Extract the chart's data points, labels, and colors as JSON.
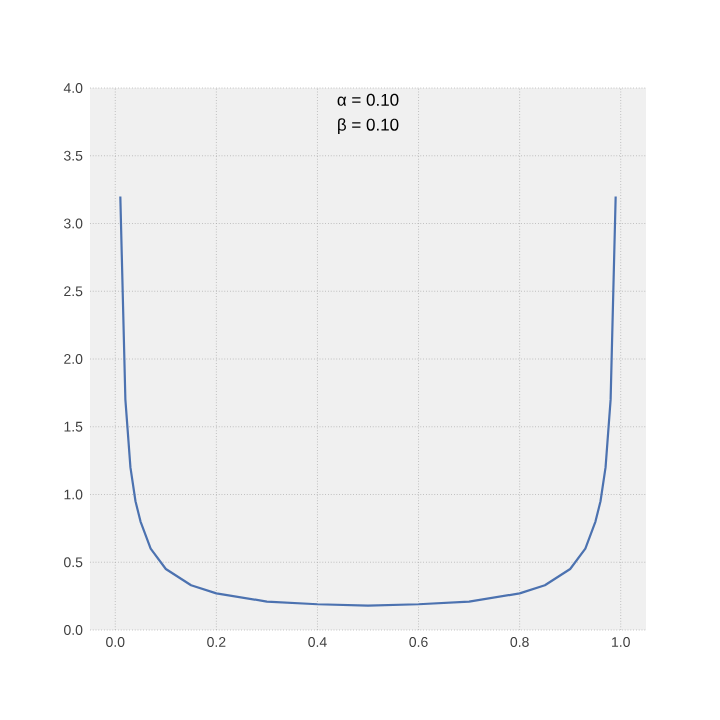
{
  "chart_data": {
    "type": "line",
    "annotations": [
      "α = 0.10",
      "β = 0.10"
    ],
    "x": [
      0.01,
      0.02,
      0.03,
      0.04,
      0.05,
      0.07,
      0.1,
      0.15,
      0.2,
      0.3,
      0.4,
      0.5,
      0.6,
      0.7,
      0.8,
      0.85,
      0.9,
      0.93,
      0.95,
      0.96,
      0.97,
      0.98,
      0.99
    ],
    "series": [
      {
        "color": "#4c72b0",
        "values": [
          3.2,
          1.7,
          1.2,
          0.95,
          0.8,
          0.6,
          0.45,
          0.33,
          0.27,
          0.21,
          0.19,
          0.18,
          0.19,
          0.21,
          0.27,
          0.33,
          0.45,
          0.6,
          0.8,
          0.95,
          1.2,
          1.7,
          3.2
        ]
      }
    ],
    "xlim": [
      -0.05,
      1.05
    ],
    "ylim": [
      0,
      4
    ],
    "xticks": [
      {
        "value": 0,
        "label": "0.0"
      },
      0.2,
      0.4,
      0.6,
      0.8,
      {
        "value": 1,
        "label": "1.0"
      }
    ],
    "yticks": [
      {
        "value": 0,
        "label": "0.0"
      },
      0.5,
      {
        "value": 1,
        "label": "1.0"
      },
      1.5,
      {
        "value": 2,
        "label": "2.0"
      },
      2.5,
      {
        "value": 3,
        "label": "3.0"
      },
      3.5,
      {
        "value": 4,
        "label": "4.0"
      }
    ],
    "grid": true,
    "marker": "none",
    "line_style": "solid"
  }
}
